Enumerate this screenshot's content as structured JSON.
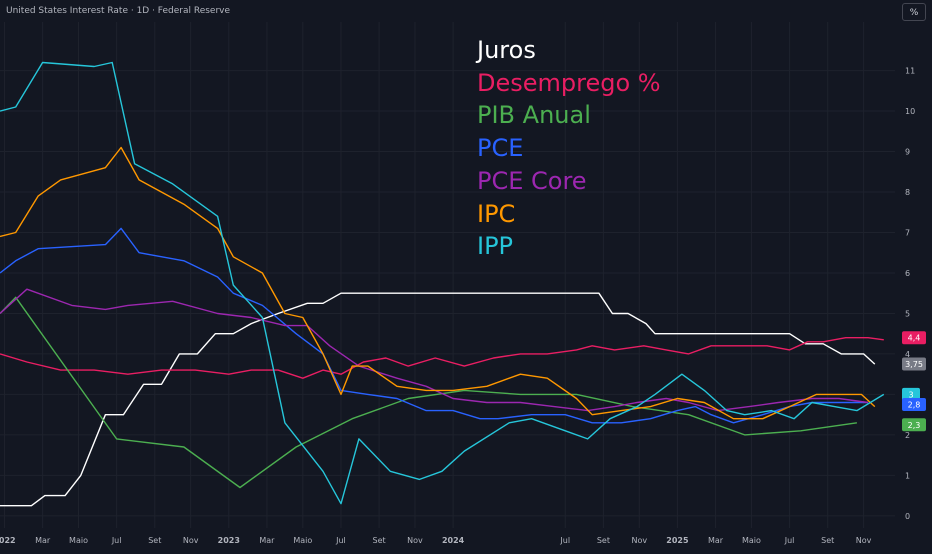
{
  "header": {
    "title": "United States Interest Rate · 1D · Federal Reserve",
    "unit_button": "%"
  },
  "chart_data": {
    "type": "line",
    "x_ticks": [
      {
        "label": "2022",
        "x": 2022.0,
        "bold": true
      },
      {
        "label": "Mar",
        "x": 2022.17
      },
      {
        "label": "Maio",
        "x": 2022.33
      },
      {
        "label": "Jul",
        "x": 2022.5
      },
      {
        "label": "Set",
        "x": 2022.67
      },
      {
        "label": "Nov",
        "x": 2022.83
      },
      {
        "label": "2023",
        "x": 2023.0,
        "bold": true
      },
      {
        "label": "Mar",
        "x": 2023.17
      },
      {
        "label": "Maio",
        "x": 2023.33
      },
      {
        "label": "Jul",
        "x": 2023.5
      },
      {
        "label": "Set",
        "x": 2023.67
      },
      {
        "label": "Nov",
        "x": 2023.83
      },
      {
        "label": "2024",
        "x": 2024.0,
        "bold": true
      },
      {
        "label": "Jul",
        "x": 2024.5
      },
      {
        "label": "Set",
        "x": 2024.67
      },
      {
        "label": "Nov",
        "x": 2024.83
      },
      {
        "label": "2025",
        "x": 2025.0,
        "bold": true
      },
      {
        "label": "Mar",
        "x": 2025.17
      },
      {
        "label": "Maio",
        "x": 2025.33
      },
      {
        "label": "Jul",
        "x": 2025.5
      },
      {
        "label": "Set",
        "x": 2025.67
      },
      {
        "label": "Nov",
        "x": 2025.83
      }
    ],
    "y_ticks": [
      0,
      1,
      2,
      3,
      4,
      5,
      6,
      7,
      8,
      9,
      10,
      11
    ],
    "y_range": [
      -0.3,
      12.2
    ],
    "x_range": [
      2021.98,
      2025.97
    ],
    "grid": true,
    "series": [
      {
        "name": "Juros",
        "color": "#ffffff",
        "points": [
          [
            2021.98,
            0.25
          ],
          [
            2022.12,
            0.25
          ],
          [
            2022.18,
            0.5
          ],
          [
            2022.27,
            0.5
          ],
          [
            2022.34,
            1.0
          ],
          [
            2022.45,
            2.5
          ],
          [
            2022.53,
            2.5
          ],
          [
            2022.62,
            3.25
          ],
          [
            2022.7,
            3.25
          ],
          [
            2022.78,
            4.0
          ],
          [
            2022.86,
            4.0
          ],
          [
            2022.94,
            4.5
          ],
          [
            2023.02,
            4.5
          ],
          [
            2023.1,
            4.75
          ],
          [
            2023.22,
            5.0
          ],
          [
            2023.35,
            5.25
          ],
          [
            2023.42,
            5.25
          ],
          [
            2023.5,
            5.5
          ],
          [
            2024.4,
            5.5
          ],
          [
            2024.65,
            5.5
          ],
          [
            2024.71,
            5.0
          ],
          [
            2024.78,
            5.0
          ],
          [
            2024.86,
            4.75
          ],
          [
            2024.9,
            4.5
          ],
          [
            2025.5,
            4.5
          ],
          [
            2025.57,
            4.25
          ],
          [
            2025.65,
            4.25
          ],
          [
            2025.73,
            4.0
          ],
          [
            2025.83,
            4.0
          ],
          [
            2025.88,
            3.75
          ]
        ]
      },
      {
        "name": "Desemprego %",
        "color": "#e91e63",
        "points": [
          [
            2021.98,
            4.0
          ],
          [
            2022.1,
            3.8
          ],
          [
            2022.25,
            3.6
          ],
          [
            2022.4,
            3.6
          ],
          [
            2022.55,
            3.5
          ],
          [
            2022.7,
            3.6
          ],
          [
            2022.85,
            3.6
          ],
          [
            2023.0,
            3.5
          ],
          [
            2023.1,
            3.6
          ],
          [
            2023.22,
            3.6
          ],
          [
            2023.33,
            3.4
          ],
          [
            2023.42,
            3.6
          ],
          [
            2023.5,
            3.5
          ],
          [
            2023.6,
            3.8
          ],
          [
            2023.7,
            3.9
          ],
          [
            2023.8,
            3.7
          ],
          [
            2023.92,
            3.9
          ],
          [
            2024.05,
            3.7
          ],
          [
            2024.18,
            3.9
          ],
          [
            2024.3,
            4.0
          ],
          [
            2024.42,
            4.0
          ],
          [
            2024.55,
            4.1
          ],
          [
            2024.62,
            4.2
          ],
          [
            2024.72,
            4.1
          ],
          [
            2024.85,
            4.2
          ],
          [
            2024.95,
            4.1
          ],
          [
            2025.05,
            4.0
          ],
          [
            2025.15,
            4.2
          ],
          [
            2025.3,
            4.2
          ],
          [
            2025.4,
            4.2
          ],
          [
            2025.5,
            4.1
          ],
          [
            2025.58,
            4.3
          ],
          [
            2025.65,
            4.3
          ],
          [
            2025.75,
            4.4
          ],
          [
            2025.85,
            4.4
          ],
          [
            2025.92,
            4.35
          ]
        ]
      },
      {
        "name": "PIB Anual",
        "color": "#4caf50",
        "points": [
          [
            2021.98,
            5.0
          ],
          [
            2022.05,
            5.4
          ],
          [
            2022.5,
            1.9
          ],
          [
            2022.8,
            1.7
          ],
          [
            2023.05,
            0.7
          ],
          [
            2023.3,
            1.7
          ],
          [
            2023.55,
            2.4
          ],
          [
            2023.8,
            2.9
          ],
          [
            2024.05,
            3.1
          ],
          [
            2024.3,
            3.0
          ],
          [
            2024.55,
            3.0
          ],
          [
            2024.8,
            2.7
          ],
          [
            2025.05,
            2.5
          ],
          [
            2025.3,
            2.0
          ],
          [
            2025.55,
            2.1
          ],
          [
            2025.8,
            2.3
          ]
        ]
      },
      {
        "name": "PCE",
        "color": "#2962ff",
        "points": [
          [
            2021.98,
            6.0
          ],
          [
            2022.05,
            6.3
          ],
          [
            2022.15,
            6.6
          ],
          [
            2022.45,
            6.7
          ],
          [
            2022.52,
            7.1
          ],
          [
            2022.6,
            6.5
          ],
          [
            2022.8,
            6.3
          ],
          [
            2022.95,
            5.9
          ],
          [
            2023.02,
            5.5
          ],
          [
            2023.15,
            5.2
          ],
          [
            2023.3,
            4.5
          ],
          [
            2023.42,
            4.0
          ],
          [
            2023.5,
            3.1
          ],
          [
            2023.62,
            3.0
          ],
          [
            2023.75,
            2.9
          ],
          [
            2023.88,
            2.6
          ],
          [
            2024.0,
            2.6
          ],
          [
            2024.12,
            2.4
          ],
          [
            2024.2,
            2.4
          ],
          [
            2024.35,
            2.5
          ],
          [
            2024.5,
            2.5
          ],
          [
            2024.62,
            2.3
          ],
          [
            2024.75,
            2.3
          ],
          [
            2024.88,
            2.4
          ],
          [
            2025.0,
            2.6
          ],
          [
            2025.08,
            2.7
          ],
          [
            2025.15,
            2.5
          ],
          [
            2025.25,
            2.3
          ],
          [
            2025.38,
            2.5
          ],
          [
            2025.5,
            2.7
          ],
          [
            2025.6,
            2.8
          ],
          [
            2025.72,
            2.8
          ],
          [
            2025.85,
            2.8
          ]
        ]
      },
      {
        "name": "PCE Core",
        "color": "#9c27b0",
        "points": [
          [
            2021.98,
            5.0
          ],
          [
            2022.1,
            5.6
          ],
          [
            2022.3,
            5.2
          ],
          [
            2022.45,
            5.1
          ],
          [
            2022.55,
            5.2
          ],
          [
            2022.75,
            5.3
          ],
          [
            2022.95,
            5.0
          ],
          [
            2023.1,
            4.9
          ],
          [
            2023.25,
            4.7
          ],
          [
            2023.35,
            4.7
          ],
          [
            2023.45,
            4.2
          ],
          [
            2023.58,
            3.7
          ],
          [
            2023.75,
            3.4
          ],
          [
            2023.88,
            3.2
          ],
          [
            2024.0,
            2.9
          ],
          [
            2024.15,
            2.8
          ],
          [
            2024.3,
            2.8
          ],
          [
            2024.45,
            2.7
          ],
          [
            2024.6,
            2.6
          ],
          [
            2024.72,
            2.7
          ],
          [
            2024.82,
            2.8
          ],
          [
            2024.95,
            2.9
          ],
          [
            2025.05,
            2.8
          ],
          [
            2025.18,
            2.6
          ],
          [
            2025.32,
            2.7
          ],
          [
            2025.45,
            2.8
          ],
          [
            2025.6,
            2.9
          ],
          [
            2025.72,
            2.9
          ],
          [
            2025.85,
            2.8
          ]
        ]
      },
      {
        "name": "IPC",
        "color": "#ff9800",
        "points": [
          [
            2021.98,
            6.9
          ],
          [
            2022.05,
            7.0
          ],
          [
            2022.15,
            7.9
          ],
          [
            2022.25,
            8.3
          ],
          [
            2022.45,
            8.6
          ],
          [
            2022.52,
            9.1
          ],
          [
            2022.6,
            8.3
          ],
          [
            2022.8,
            7.7
          ],
          [
            2022.95,
            7.1
          ],
          [
            2023.02,
            6.4
          ],
          [
            2023.15,
            6.0
          ],
          [
            2023.25,
            5.0
          ],
          [
            2023.33,
            4.9
          ],
          [
            2023.42,
            4.0
          ],
          [
            2023.5,
            3.0
          ],
          [
            2023.55,
            3.7
          ],
          [
            2023.62,
            3.7
          ],
          [
            2023.75,
            3.2
          ],
          [
            2023.88,
            3.1
          ],
          [
            2024.0,
            3.1
          ],
          [
            2024.15,
            3.2
          ],
          [
            2024.3,
            3.5
          ],
          [
            2024.42,
            3.4
          ],
          [
            2024.55,
            2.9
          ],
          [
            2024.62,
            2.5
          ],
          [
            2024.75,
            2.6
          ],
          [
            2024.88,
            2.7
          ],
          [
            2025.0,
            2.9
          ],
          [
            2025.12,
            2.8
          ],
          [
            2025.25,
            2.4
          ],
          [
            2025.38,
            2.4
          ],
          [
            2025.5,
            2.7
          ],
          [
            2025.62,
            3.0
          ],
          [
            2025.75,
            3.0
          ],
          [
            2025.82,
            3.0
          ],
          [
            2025.88,
            2.7
          ]
        ]
      },
      {
        "name": "IPP",
        "color": "#26c6da",
        "points": [
          [
            2021.98,
            10.0
          ],
          [
            2022.05,
            10.1
          ],
          [
            2022.17,
            11.2
          ],
          [
            2022.4,
            11.1
          ],
          [
            2022.48,
            11.2
          ],
          [
            2022.58,
            8.7
          ],
          [
            2022.75,
            8.2
          ],
          [
            2022.95,
            7.4
          ],
          [
            2023.02,
            5.7
          ],
          [
            2023.15,
            4.9
          ],
          [
            2023.25,
            2.3
          ],
          [
            2023.42,
            1.1
          ],
          [
            2023.5,
            0.3
          ],
          [
            2023.58,
            1.9
          ],
          [
            2023.72,
            1.1
          ],
          [
            2023.85,
            0.9
          ],
          [
            2023.95,
            1.1
          ],
          [
            2024.05,
            1.6
          ],
          [
            2024.25,
            2.3
          ],
          [
            2024.35,
            2.4
          ],
          [
            2024.5,
            2.1
          ],
          [
            2024.6,
            1.9
          ],
          [
            2024.7,
            2.4
          ],
          [
            2024.82,
            2.7
          ],
          [
            2024.9,
            3.0
          ],
          [
            2025.02,
            3.5
          ],
          [
            2025.12,
            3.1
          ],
          [
            2025.22,
            2.6
          ],
          [
            2025.3,
            2.5
          ],
          [
            2025.42,
            2.6
          ],
          [
            2025.52,
            2.4
          ],
          [
            2025.6,
            2.8
          ],
          [
            2025.7,
            2.7
          ],
          [
            2025.8,
            2.6
          ],
          [
            2025.92,
            3.0
          ]
        ]
      }
    ],
    "last_value_badges": [
      {
        "label": "4,4",
        "value": 4.4,
        "color": "#e91e63"
      },
      {
        "label": "3,75",
        "value": 3.75,
        "color": "#787b86"
      },
      {
        "label": "3",
        "value": 3.0,
        "color": "#26c6da"
      },
      {
        "label": "2,8",
        "value": 2.75,
        "color": "#2962ff"
      },
      {
        "label": "2,3",
        "value": 2.25,
        "color": "#4caf50"
      }
    ],
    "legend_placement": "top-center"
  },
  "legend": {
    "items": [
      {
        "label": "Juros",
        "color": "#ffffff"
      },
      {
        "label": "Desemprego %",
        "color": "#e91e63"
      },
      {
        "label": "PIB Anual",
        "color": "#4caf50"
      },
      {
        "label": "PCE",
        "color": "#2962ff"
      },
      {
        "label": "PCE Core",
        "color": "#9c27b0"
      },
      {
        "label": "IPC",
        "color": "#ff9800"
      },
      {
        "label": "IPP",
        "color": "#26c6da"
      }
    ]
  }
}
